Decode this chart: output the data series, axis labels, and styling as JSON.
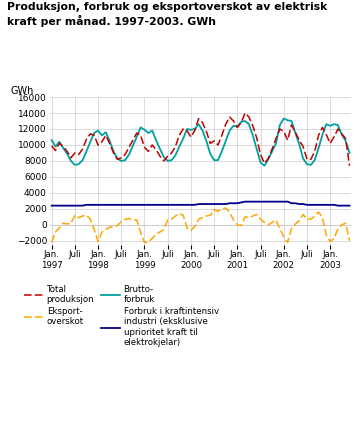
{
  "title": "Produksjon, forbruk og eksportoverskot av elektrisk\nkraft per månad. 1997-2003. GWh",
  "ylabel": "GWh",
  "ylim": [
    -2500,
    16000
  ],
  "yticks": [
    -2000,
    0,
    2000,
    4000,
    6000,
    8000,
    10000,
    12000,
    14000,
    16000
  ],
  "background_color": "#ffffff",
  "grid_color": "#cccccc",
  "total_produksjon": [
    9900,
    9300,
    10200,
    9800,
    9200,
    8400,
    9000,
    8800,
    9500,
    10700,
    11400,
    11200,
    10000,
    10400,
    11200,
    10200,
    9000,
    8200,
    8400,
    8800,
    9700,
    10600,
    11500,
    11200,
    9700,
    9200,
    10000,
    9400,
    8600,
    8000,
    8600,
    9000,
    9800,
    11200,
    12000,
    11800,
    11000,
    11800,
    13300,
    12800,
    11700,
    10200,
    10500,
    10000,
    11200,
    12600,
    13500,
    13000,
    12200,
    12800,
    14000,
    13500,
    12400,
    10900,
    8800,
    7700,
    8300,
    9500,
    10800,
    12000,
    11700,
    10600,
    12500,
    11600,
    10600,
    9800,
    8200,
    8200,
    9200,
    11200,
    12200,
    11300,
    10200,
    11000,
    12000,
    11400,
    10800,
    7400
  ],
  "brutto_forbruk": [
    10600,
    9800,
    10400,
    9600,
    8900,
    8000,
    7500,
    7600,
    8100,
    9200,
    10400,
    11500,
    11800,
    11200,
    11600,
    10500,
    9200,
    8300,
    8000,
    8100,
    8800,
    9900,
    11000,
    12200,
    11900,
    11500,
    11800,
    10600,
    9500,
    8500,
    8000,
    8100,
    8700,
    9800,
    10800,
    12000,
    11900,
    12000,
    12600,
    11800,
    10500,
    8900,
    8100,
    8100,
    9200,
    10500,
    11800,
    12400,
    12300,
    12900,
    13000,
    12600,
    11200,
    9500,
    7800,
    7400,
    8200,
    9200,
    10200,
    12500,
    13300,
    13100,
    13000,
    11500,
    10100,
    8300,
    7600,
    7500,
    8100,
    9600,
    11300,
    12600,
    12400,
    12600,
    12500,
    11300,
    10500,
    9000
  ],
  "eksport_overskot": [
    -2200,
    -900,
    -400,
    200,
    100,
    200,
    1200,
    900,
    1100,
    1200,
    700,
    -600,
    -2100,
    -900,
    -600,
    -300,
    -200,
    -100,
    400,
    700,
    800,
    600,
    600,
    -1000,
    -2200,
    -2200,
    -1700,
    -1200,
    -900,
    -600,
    600,
    700,
    1100,
    1400,
    1200,
    -400,
    -700,
    -200,
    700,
    900,
    1100,
    1200,
    1900,
    1700,
    2000,
    2100,
    1600,
    600,
    0,
    -100,
    1000,
    900,
    1100,
    1300,
    700,
    300,
    0,
    300,
    600,
    -500,
    -1500,
    -2200,
    -500,
    100,
    500,
    1300,
    700,
    700,
    1100,
    1600,
    900,
    -1300,
    -2100,
    -1700,
    -500,
    0,
    200,
    -2000
  ],
  "forbruk_kraftintensiv": [
    2400,
    2400,
    2400,
    2400,
    2400,
    2400,
    2400,
    2400,
    2400,
    2500,
    2500,
    2500,
    2500,
    2500,
    2500,
    2500,
    2500,
    2500,
    2500,
    2500,
    2500,
    2500,
    2500,
    2500,
    2500,
    2500,
    2500,
    2500,
    2500,
    2500,
    2500,
    2500,
    2500,
    2500,
    2500,
    2500,
    2500,
    2500,
    2600,
    2600,
    2600,
    2600,
    2600,
    2600,
    2600,
    2600,
    2700,
    2700,
    2700,
    2800,
    2900,
    2900,
    2900,
    2900,
    2900,
    2900,
    2900,
    2900,
    2900,
    2900,
    2900,
    2900,
    2700,
    2700,
    2600,
    2600,
    2500,
    2500,
    2500,
    2500,
    2500,
    2500,
    2500,
    2500,
    2400,
    2400,
    2400,
    2400
  ],
  "color_total": "#c00000",
  "color_brutto": "#00a0a0",
  "color_eksport": "#FFA500",
  "color_kraftintensiv": "#00008B",
  "xtick_labels": [
    "Jan.\n1997",
    "Juli",
    "Jan.\n1998",
    "Juli",
    "Jan.\n1999",
    "Juli",
    "Jan.\n2000",
    "Juli",
    "Jan.\n2001",
    "Juli",
    "Jan.\n2002",
    "Juli",
    "Jan.\n2003"
  ],
  "xtick_positions": [
    0,
    6,
    12,
    18,
    24,
    30,
    36,
    42,
    48,
    54,
    60,
    66,
    72
  ]
}
